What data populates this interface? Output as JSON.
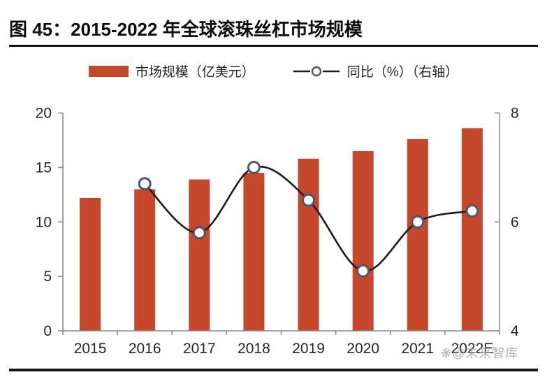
{
  "title": "图 45：2015-2022 年全球滚珠丝杠市场规模",
  "legend": [
    {
      "label": "市场规模（亿美元）",
      "swatch": "bar"
    },
    {
      "label": "同比（%）（右轴）",
      "swatch": "line-circle"
    }
  ],
  "watermark": {
    "icon": "❋",
    "text": "@未来智库"
  },
  "colors": {
    "bar": "#c6482c",
    "line": "#1b1c20",
    "marker_stroke": "#4e576b",
    "marker_fill": "#fafbff",
    "axis": "#8c8c8c",
    "label": "#262626",
    "rule": "#141414",
    "watermark": "#a0a0a6"
  },
  "chart_data": {
    "type": "bar",
    "subtype": "combo-bar-line",
    "title": "2015-2022 年全球滚珠丝杠市场规模",
    "categories": [
      "2015",
      "2016",
      "2017",
      "2018",
      "2019",
      "2020",
      "2021",
      "2022E"
    ],
    "series": [
      {
        "name": "市场规模（亿美元）",
        "type": "bar",
        "axis": "left",
        "values": [
          12.2,
          13.0,
          13.9,
          14.5,
          15.8,
          16.5,
          17.6,
          18.6
        ]
      },
      {
        "name": "同比（%）",
        "type": "line",
        "axis": "right",
        "values": [
          null,
          6.7,
          5.8,
          7.0,
          6.4,
          5.1,
          6.0,
          6.2
        ]
      }
    ],
    "xlabel": "",
    "ylabel_left": "亿美元",
    "ylabel_right": "%",
    "left_axis": {
      "range": [
        0,
        20
      ],
      "ticks": [
        0,
        5,
        10,
        15,
        20
      ]
    },
    "right_axis": {
      "range": [
        4,
        8
      ],
      "ticks": [
        4,
        6,
        8
      ]
    },
    "grid": false,
    "legend_position": "top"
  }
}
